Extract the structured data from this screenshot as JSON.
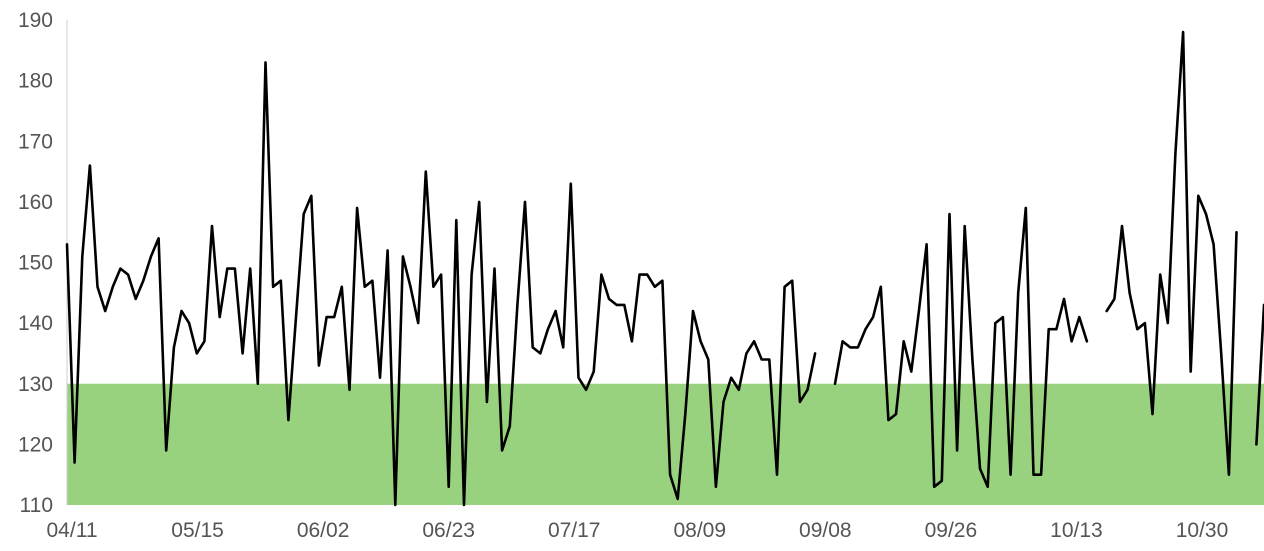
{
  "chart_data": {
    "type": "line",
    "title": "",
    "xlabel": "",
    "ylabel": "",
    "ylim": [
      110,
      190
    ],
    "yticks": [
      110,
      120,
      130,
      140,
      150,
      160,
      170,
      180,
      190
    ],
    "x_tick_labels": [
      "04/11",
      "05/15",
      "06/02",
      "06/23",
      "07/17",
      "08/09",
      "09/08",
      "09/26",
      "10/13",
      "10/30"
    ],
    "target_band": {
      "from": 110,
      "to": 130,
      "color": "#98d27e"
    },
    "line_color": "#000000",
    "grid": false,
    "legend": "none",
    "series": [
      {
        "segments": [
          [
            153,
            117,
            151,
            166,
            146,
            142,
            146,
            149,
            148,
            144,
            147,
            151,
            154,
            119,
            136,
            142,
            140,
            135,
            137,
            156,
            141,
            149,
            149,
            135,
            149,
            130,
            183,
            146,
            147,
            124,
            141,
            158,
            161,
            133,
            141,
            141,
            146,
            129,
            159,
            146,
            147,
            131,
            152,
            110,
            151,
            146,
            140,
            165,
            146,
            148,
            113,
            157,
            110,
            148,
            160,
            127,
            149,
            119,
            123,
            143,
            160,
            136,
            135,
            139,
            142,
            136,
            163,
            131,
            129,
            132,
            148,
            144,
            143,
            143,
            137,
            148,
            148,
            146,
            147,
            115,
            111,
            125,
            142,
            137,
            134,
            113,
            127,
            131,
            129,
            135,
            137,
            134,
            134,
            115,
            146,
            147,
            127,
            129,
            135
          ],
          [
            130,
            137,
            136,
            136,
            139,
            141,
            146,
            124,
            125,
            137,
            132,
            142,
            153,
            113,
            114,
            158,
            119,
            156,
            134,
            116,
            113,
            140,
            141,
            115,
            145,
            159,
            115,
            115,
            139,
            139,
            144,
            137,
            141,
            137
          ],
          [
            142,
            144,
            156,
            145,
            139,
            140,
            125,
            148,
            140,
            168,
            188,
            132,
            161,
            158,
            153,
            135,
            115,
            155
          ],
          [
            120,
            143
          ]
        ]
      }
    ]
  }
}
